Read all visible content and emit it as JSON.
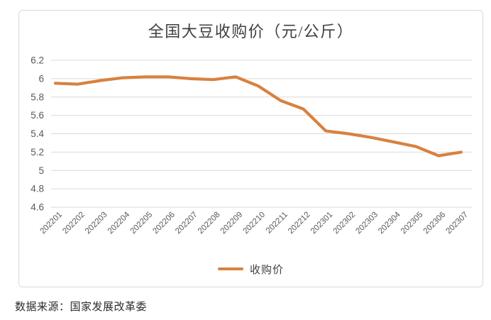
{
  "source_note": "数据来源：国家发展改革委",
  "colors": {
    "series_orange": "#d9813f",
    "gridline_gray": "#d9d9d9",
    "tick_label_gray": "#595959",
    "title_gray": "#3f3f3f"
  },
  "chart_data": {
    "type": "line",
    "title": "全国大豆收购价（元/公斤）",
    "categories": [
      "202201",
      "202202",
      "202203",
      "202204",
      "202205",
      "202206",
      "202207",
      "202208",
      "202209",
      "202210",
      "202211",
      "202212",
      "202301",
      "202302",
      "202303",
      "202304",
      "202305",
      "202306",
      "202307"
    ],
    "series": [
      {
        "name": "收购价",
        "color": "#d9813f",
        "values": [
          5.95,
          5.94,
          5.98,
          6.01,
          6.02,
          6.02,
          6.0,
          5.99,
          6.02,
          5.92,
          5.76,
          5.67,
          5.43,
          5.4,
          5.36,
          5.31,
          5.26,
          5.16,
          5.2
        ]
      }
    ],
    "ylim": [
      4.6,
      6.2
    ],
    "yticks": [
      6.2,
      6.0,
      5.8,
      5.6,
      5.4,
      5.2,
      5.0,
      4.8,
      4.6
    ],
    "xlabel": "",
    "ylabel": "",
    "grid": true,
    "legend_position": "bottom",
    "x_label_rotation_deg": -45
  }
}
